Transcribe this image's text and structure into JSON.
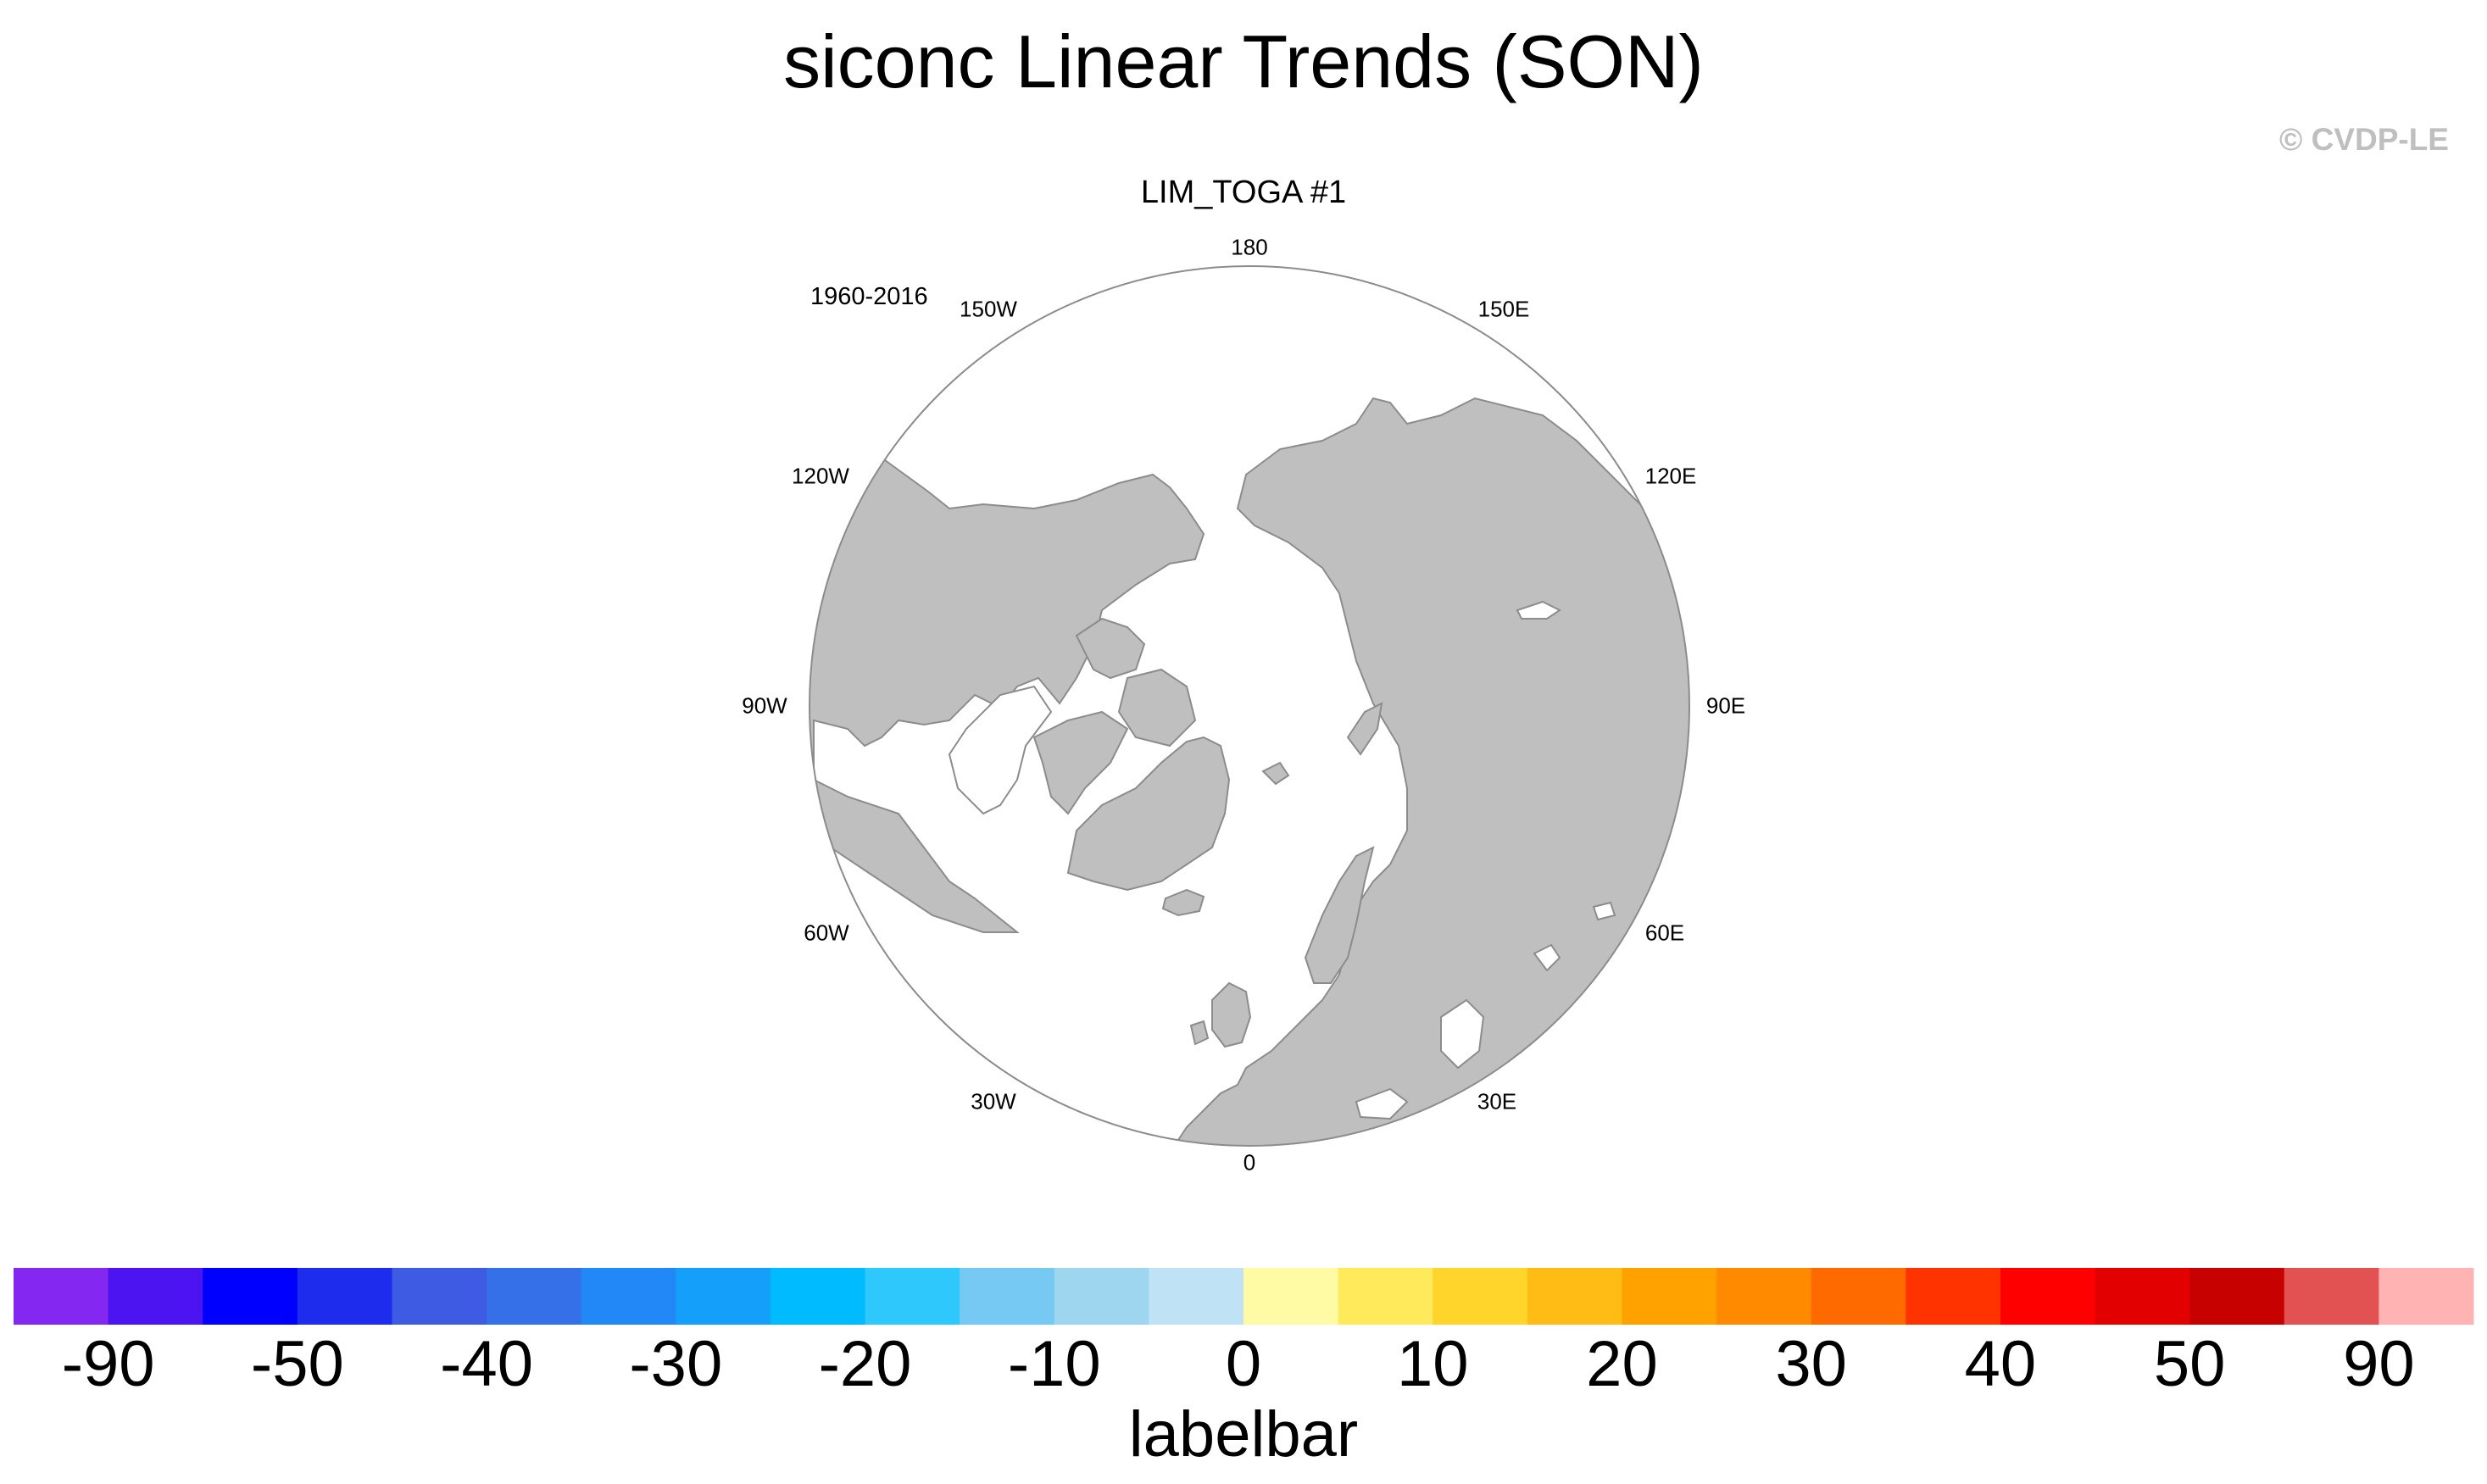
{
  "title": "siconc Linear Trends (SON)",
  "watermark": "© CVDP-LE",
  "panel": {
    "title": "LIM_TOGA #1",
    "period": "1960-2016"
  },
  "map": {
    "projection": "north-polar-stereographic",
    "ocean_color": "#ffffff",
    "land_color": "#bfbfbf",
    "border_color": "#8c8c8c",
    "longitude_labels": [
      "180",
      "150E",
      "120E",
      "90E",
      "60E",
      "30E",
      "0",
      "30W",
      "60W",
      "90W",
      "120W",
      "150W"
    ]
  },
  "labelbar": {
    "label": "labelbar",
    "colors": [
      "#8427f0",
      "#4b14f0",
      "#0000ff",
      "#1e2ded",
      "#3d5be3",
      "#3670e8",
      "#2388f7",
      "#14a0fa",
      "#00bbff",
      "#2ec8fc",
      "#75c9f2",
      "#9ed6f0",
      "#bfe3f5",
      "#fffaa3",
      "#ffea5c",
      "#ffd42b",
      "#ffbc14",
      "#ffa200",
      "#ff8a00",
      "#ff6a00",
      "#ff3300",
      "#ff0000",
      "#e30000",
      "#c70000",
      "#e35252",
      "#ffb3b3"
    ],
    "tick_labels": [
      "-90",
      "-50",
      "-40",
      "-30",
      "-20",
      "-10",
      "0",
      "10",
      "20",
      "30",
      "40",
      "50",
      "90"
    ]
  }
}
